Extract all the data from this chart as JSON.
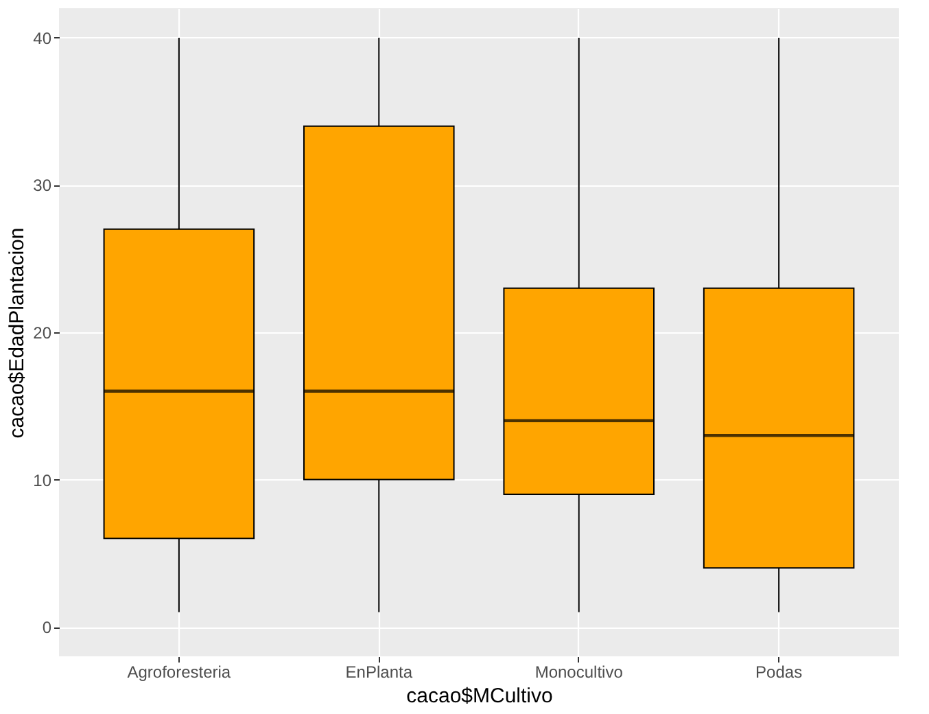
{
  "chart_data": {
    "type": "box",
    "xlabel": "cacao$MCultivo",
    "ylabel": "cacao$EdadPlantacion",
    "categories": [
      "Agroforesteria",
      "EnPlanta",
      "Monocultivo",
      "Podas"
    ],
    "boxes": [
      {
        "low": 1,
        "q1": 6,
        "median": 16,
        "q3": 27,
        "high": 40
      },
      {
        "low": 1,
        "q1": 10,
        "median": 16,
        "q3": 34,
        "high": 40
      },
      {
        "low": 1,
        "q1": 9,
        "median": 14,
        "q3": 23,
        "high": 40
      },
      {
        "low": 1,
        "q1": 4,
        "median": 13,
        "q3": 23,
        "high": 40
      }
    ],
    "color": "#ffa500",
    "ylim": [
      -2,
      42
    ],
    "yticks": [
      0,
      10,
      20,
      30,
      40
    ],
    "grid": true
  }
}
